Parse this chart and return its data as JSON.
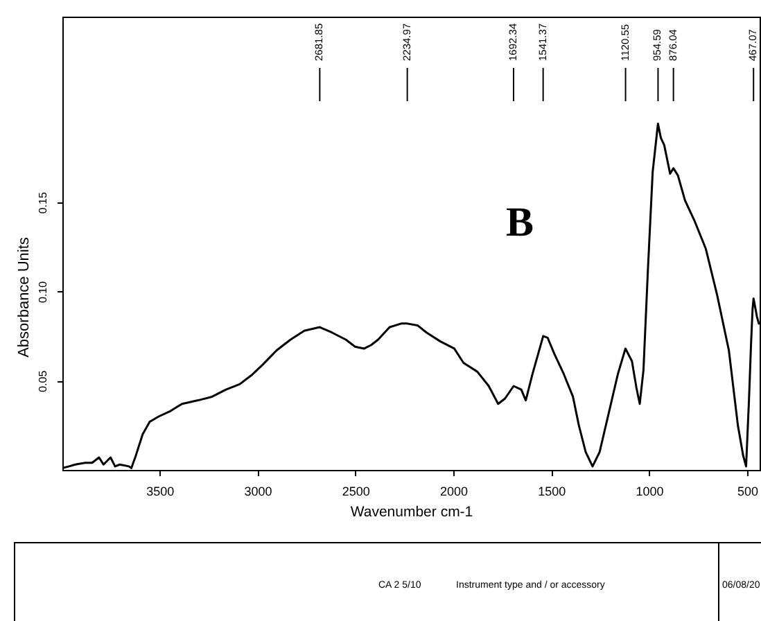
{
  "chart_data": {
    "type": "line",
    "xlabel": "Wavenumber cm-1",
    "ylabel": "Absorbance Units",
    "color": "#000000",
    "grid": false,
    "xlim": [
      3996,
      436
    ],
    "ylim": [
      0,
      0.254
    ],
    "xticks": [
      3500,
      3000,
      2500,
      2000,
      1500,
      1000,
      500
    ],
    "yticks": [
      0.05,
      {
        "value": 0.1,
        "label": "0.10"
      },
      0.15
    ],
    "x": [
      3996,
      3962,
      3930,
      3880,
      3844,
      3809,
      3786,
      3750,
      3727,
      3703,
      3656,
      3644,
      3621,
      3586,
      3550,
      3503,
      3444,
      3385,
      3303,
      3232,
      3161,
      3091,
      3031,
      2973,
      2902,
      2831,
      2761,
      2682,
      2620,
      2549,
      2501,
      2455,
      2419,
      2384,
      2325,
      2266,
      2235,
      2183,
      2137,
      2066,
      1995,
      1948,
      1877,
      1819,
      1771,
      1736,
      1692,
      1653,
      1630,
      1595,
      1541,
      1518,
      1484,
      1437,
      1389,
      1359,
      1324,
      1289,
      1253,
      1206,
      1159,
      1121,
      1088,
      1065,
      1048,
      1029,
      1006,
      982,
      955,
      940,
      923,
      893,
      876,
      853,
      817,
      770,
      711,
      653,
      593,
      547,
      520,
      505,
      490,
      480,
      472,
      467,
      460,
      450,
      440
    ],
    "values": [
      0.001,
      0.002,
      0.003,
      0.004,
      0.004,
      0.007,
      0.003,
      0.007,
      0.002,
      0.003,
      0.002,
      0.001,
      0.008,
      0.02,
      0.027,
      0.03,
      0.033,
      0.037,
      0.039,
      0.041,
      0.045,
      0.048,
      0.053,
      0.059,
      0.067,
      0.073,
      0.078,
      0.08,
      0.077,
      0.073,
      0.069,
      0.068,
      0.07,
      0.073,
      0.08,
      0.082,
      0.082,
      0.081,
      0.077,
      0.072,
      0.068,
      0.06,
      0.055,
      0.047,
      0.037,
      0.04,
      0.047,
      0.045,
      0.039,
      0.054,
      0.075,
      0.074,
      0.065,
      0.054,
      0.041,
      0.025,
      0.01,
      0.002,
      0.01,
      0.032,
      0.054,
      0.068,
      0.061,
      0.046,
      0.037,
      0.056,
      0.113,
      0.167,
      0.194,
      0.186,
      0.182,
      0.166,
      0.169,
      0.165,
      0.151,
      0.14,
      0.124,
      0.098,
      0.067,
      0.025,
      0.008,
      0.002,
      0.04,
      0.07,
      0.09,
      0.096,
      0.092,
      0.086,
      0.082
    ],
    "ref_lines": [
      {
        "axis": "x",
        "value": 2681.85,
        "label": "2681.85",
        "color": "#000000"
      },
      {
        "axis": "x",
        "value": 2234.97,
        "label": "2234.97",
        "color": "#000000"
      },
      {
        "axis": "x",
        "value": 1692.34,
        "label": "1692.34",
        "color": "#000000"
      },
      {
        "axis": "x",
        "value": 1541.37,
        "label": "1541.37",
        "color": "#000000"
      },
      {
        "axis": "x",
        "value": 1120.55,
        "label": "1120.55",
        "color": "#000000"
      },
      {
        "axis": "x",
        "value": 954.59,
        "label": "954.59",
        "color": "#000000"
      },
      {
        "axis": "x",
        "value": 876.04,
        "label": "876.04",
        "color": "#000000"
      },
      {
        "axis": "x",
        "value": 467.07,
        "label": "467.07",
        "color": "#000000"
      }
    ],
    "annotations": [
      "B",
      "CA 2 5/10",
      "Instrument type and / or accessory",
      "06/08/20"
    ]
  }
}
